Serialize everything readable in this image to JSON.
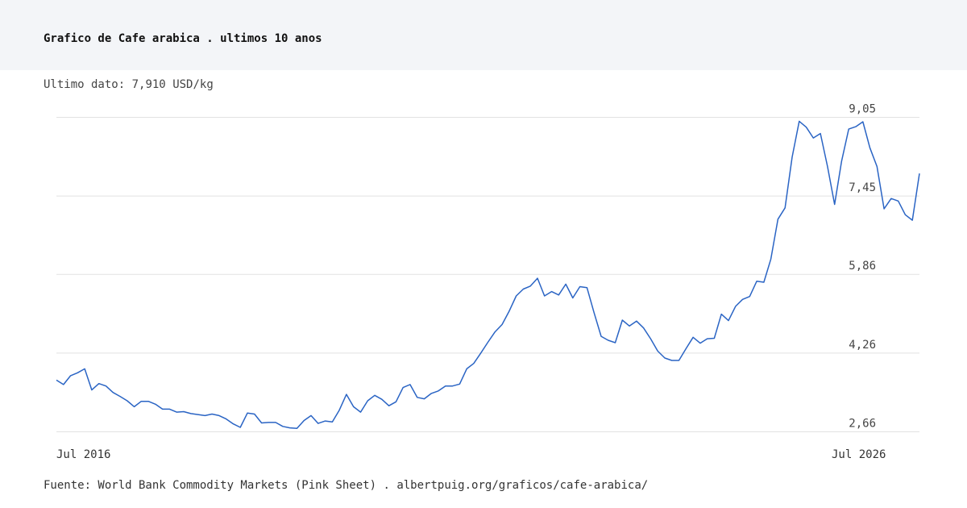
{
  "header": {
    "title": "Grafico de Cafe arabica . ultimos 10 anos"
  },
  "latest": {
    "label": "Ultimo dato:",
    "value": "7,910",
    "unit": "USD/kg"
  },
  "footer": {
    "source": "Fuente: World Bank Commodity Markets (Pink Sheet)",
    "separator": ".",
    "url": "albertpuig.org/graficos/cafe-arabica/"
  },
  "colors": {
    "line": "#2a64c4",
    "grid": "#e2e2e2",
    "header_bg": "#f3f5f8"
  },
  "chart_data": {
    "type": "line",
    "title": "Grafico de Cafe arabica . ultimos 10 anos",
    "xlabel": "",
    "ylabel": "",
    "ylim": [
      2.5,
      9.2
    ],
    "y_ticks": [
      2.66,
      4.26,
      5.86,
      7.45,
      9.05
    ],
    "y_tick_labels": [
      "2,66",
      "4,26",
      "5,86",
      "7,45",
      "9,05"
    ],
    "x_range": [
      "2016-07",
      "2026-07"
    ],
    "x_tick_labels": [
      {
        "label": "Jul 2016",
        "index": 0
      },
      {
        "label": "Jul 2026",
        "index": 120
      }
    ],
    "grid": true,
    "legend": "none",
    "series": [
      {
        "values": [
          3.71,
          3.62,
          3.8,
          3.86,
          3.94,
          3.51,
          3.64,
          3.59,
          3.46,
          3.38,
          3.29,
          3.17,
          3.28,
          3.28,
          3.22,
          3.12,
          3.12,
          3.06,
          3.07,
          3.03,
          3.01,
          2.99,
          3.02,
          2.99,
          2.92,
          2.82,
          2.75,
          3.04,
          3.02,
          2.84,
          2.85,
          2.85,
          2.77,
          2.74,
          2.73,
          2.89,
          2.99,
          2.83,
          2.88,
          2.86,
          3.1,
          3.42,
          3.17,
          3.06,
          3.29,
          3.4,
          3.32,
          3.19,
          3.27,
          3.56,
          3.62,
          3.36,
          3.33,
          3.44,
          3.49,
          3.59,
          3.59,
          3.63,
          3.94,
          4.05,
          4.26,
          4.48,
          4.69,
          4.84,
          5.11,
          5.42,
          5.56,
          5.62,
          5.78,
          5.42,
          5.51,
          5.44,
          5.66,
          5.38,
          5.61,
          5.59,
          5.08,
          4.6,
          4.52,
          4.47,
          4.93,
          4.81,
          4.91,
          4.77,
          4.55,
          4.3,
          4.16,
          4.11,
          4.11,
          4.35,
          4.58,
          4.46,
          4.55,
          4.56,
          5.05,
          4.92,
          5.21,
          5.35,
          5.41,
          5.72,
          5.7,
          6.17,
          6.98,
          7.21,
          8.24,
          8.97,
          8.85,
          8.63,
          8.72,
          8.05,
          7.28,
          8.16,
          8.81,
          8.86,
          8.96,
          8.43,
          8.05,
          7.19,
          7.4,
          7.35,
          7.07,
          6.96,
          7.91
        ]
      }
    ]
  }
}
